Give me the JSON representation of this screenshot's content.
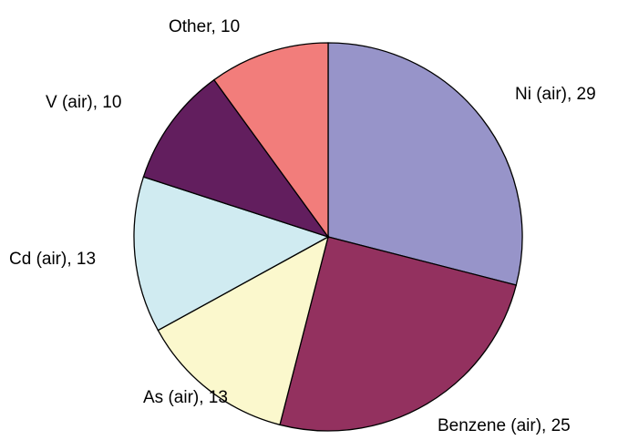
{
  "chart_data": {
    "type": "pie",
    "labels": [
      "Ni (air), 29",
      "Benzene (air), 25",
      "As (air), 13",
      "Cd (air), 13",
      "V (air), 10",
      "Other, 10"
    ],
    "values": [
      29,
      25,
      13,
      13,
      10,
      10
    ],
    "colors": [
      "#9794c9",
      "#93315f",
      "#fbf8cd",
      "#d0ebf1",
      "#621e5e",
      "#f27d7b"
    ]
  }
}
